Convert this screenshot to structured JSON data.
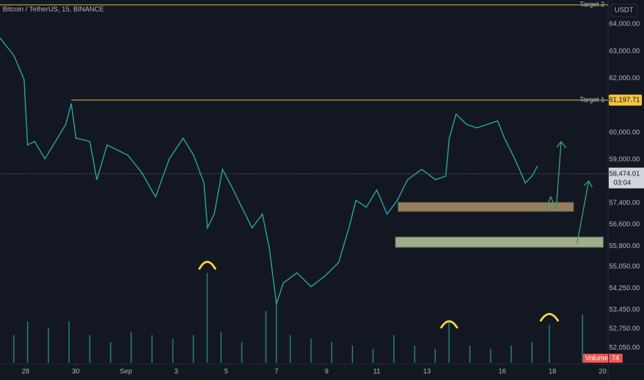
{
  "chart_data": {
    "type": "line",
    "title": "Bitcoin / TetherUS, 15, BINANCE",
    "currency": "USDT",
    "color": "#26a69a",
    "x": [
      -1.02,
      -0.47,
      -0.06,
      0.08,
      0.36,
      0.77,
      1.19,
      1.6,
      1.82,
      2.01,
      2.56,
      2.84,
      3.25,
      4.08,
      4.63,
      5.18,
      5.73,
      6.28,
      6.7,
      7.11,
      7.25,
      7.52,
      7.85,
      8.21,
      8.62,
      9.03,
      9.44,
      9.72,
      10.0,
      10.27,
      10.82,
      11.38,
      11.93,
      12.48,
      12.89,
      13.17,
      13.58,
      14.0,
      14.41,
      14.82,
      15.23,
      15.79,
      16.34,
      16.75,
      16.89,
      17.16,
      17.58,
      17.99,
      18.4,
      18.82,
      19.09,
      19.5,
      19.92,
      20.19,
      20.41
    ],
    "values": [
      63490,
      62850,
      61960,
      59540,
      59670,
      59030,
      59670,
      60300,
      61070,
      59790,
      59670,
      58260,
      59540,
      59160,
      58520,
      57620,
      59030,
      59790,
      59160,
      58140,
      56480,
      56990,
      58640,
      58010,
      57240,
      56480,
      56990,
      55710,
      53670,
      54440,
      54820,
      54310,
      54700,
      55200,
      56480,
      57500,
      57240,
      57880,
      56990,
      57500,
      58260,
      58640,
      58260,
      58390,
      59790,
      60680,
      60300,
      60170,
      60300,
      60430,
      59790,
      59030,
      58140,
      58390,
      58770
    ],
    "xlim": [
      -1.02,
      23.22
    ],
    "xticks": [
      {
        "value": 0,
        "label": "28"
      },
      {
        "value": 2,
        "label": "30"
      },
      {
        "value": 4,
        "label": "Sep"
      },
      {
        "value": 6,
        "label": "3"
      },
      {
        "value": 8,
        "label": "5"
      },
      {
        "value": 10,
        "label": "7"
      },
      {
        "value": 12,
        "label": "9"
      },
      {
        "value": 14,
        "label": "11"
      },
      {
        "value": 16,
        "label": "13"
      },
      {
        "value": 19,
        "label": "16"
      },
      {
        "value": 21,
        "label": "18"
      },
      {
        "value": 23,
        "label": "20"
      }
    ],
    "ylim": [
      51500,
      64893
    ],
    "yticks": [
      {
        "value": 64000,
        "label": "64,000.00"
      },
      {
        "value": 63000,
        "label": "63,000.00"
      },
      {
        "value": 62000,
        "label": "62,000.00"
      },
      {
        "value": 60000,
        "label": "60,000.00"
      },
      {
        "value": 59000,
        "label": "59,000.00"
      },
      {
        "value": 57400,
        "label": "57,400.00"
      },
      {
        "value": 56600,
        "label": "56,600.00"
      },
      {
        "value": 55800,
        "label": "55,800.00"
      },
      {
        "value": 55050,
        "label": "55,050.00"
      },
      {
        "value": 54250,
        "label": "54,250.00"
      },
      {
        "value": 53450,
        "label": "53,450.00"
      },
      {
        "value": 52750,
        "label": "52,750.00"
      },
      {
        "value": 52050,
        "label": "52,050.00"
      }
    ],
    "current_price": {
      "value": 58474.01,
      "label": "58,474.01",
      "countdown": "03:04"
    },
    "targets": [
      {
        "name": "Target 2",
        "value": 64715,
        "start": -1.02
      },
      {
        "name": "Target 1",
        "value": 61197.71,
        "value_label": "61,197.71",
        "start": 1.82
      }
    ],
    "zones": [
      {
        "low": 57086,
        "high": 57418,
        "start": 14.85,
        "end": 21.84,
        "color": "#c8a070"
      },
      {
        "low": 55760,
        "high": 56143,
        "start": 14.74,
        "end": 23.03,
        "color": "#d0e0b0"
      }
    ],
    "volume": {
      "name": "Volume",
      "current": 74,
      "color": "#26a69a",
      "ylim": [
        0,
        130
      ],
      "x": [
        -0.47,
        0.08,
        0.91,
        1.73,
        2.56,
        3.39,
        4.21,
        5.04,
        5.87,
        6.69,
        7.24,
        7.79,
        8.62,
        9.58,
        10.0,
        10.55,
        11.38,
        12.2,
        13.03,
        13.85,
        14.68,
        15.51,
        16.33,
        16.88,
        17.71,
        18.54,
        19.36,
        20.19,
        20.88,
        22.2
      ],
      "values": [
        40,
        60,
        50,
        60,
        40,
        30,
        45,
        40,
        35,
        40,
        130,
        45,
        30,
        75,
        90,
        40,
        35,
        30,
        25,
        20,
        40,
        25,
        20,
        60,
        25,
        20,
        25,
        30,
        55,
        70
      ]
    }
  }
}
